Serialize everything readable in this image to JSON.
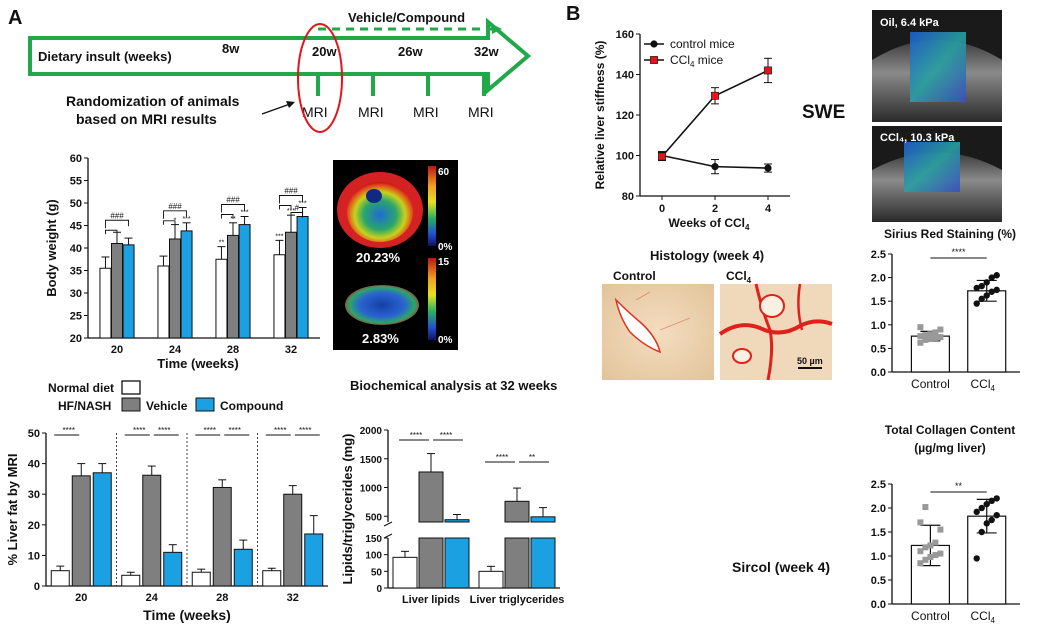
{
  "panels": {
    "A": "A",
    "B": "B"
  },
  "timeline": {
    "label": "Dietary insult (weeks)",
    "weeks": [
      "8w",
      "20w",
      "26w",
      "32w"
    ],
    "treatment_label": "Vehicle/Compound",
    "mri_label": "MRI",
    "randomization_line1": "Randomization of animals",
    "randomization_line2": "based on MRI results",
    "arrow_color": "#21A84A",
    "highlight_color": "#E0161B"
  },
  "legend": {
    "normal_diet": "Normal diet",
    "hf_nash": "HF/NASH",
    "vehicle": "Vehicle",
    "compound": "Compound",
    "colors": {
      "normal": "#FFFFFF",
      "vehicle": "#7F7F7F",
      "compound": "#1BA1E2"
    }
  },
  "mri_images": {
    "scale_top_max": "60",
    "scale_top_min": "0%",
    "scale_bottom_max": "15",
    "scale_bottom_min": "0%",
    "value_top": "20.23%",
    "value_bottom": "2.83%"
  },
  "body_weight": {
    "chart_data": {
      "type": "bar",
      "title": "",
      "xlabel": "Time (weeks)",
      "ylabel": "Body weight (g)",
      "categories": [
        "20",
        "24",
        "28",
        "32"
      ],
      "ylim": [
        20,
        60
      ],
      "yticks": [
        "20",
        "25",
        "30",
        "35",
        "40",
        "45",
        "50",
        "55",
        "60"
      ],
      "series": [
        {
          "name": "Normal diet",
          "values": [
            35.5,
            36.0,
            37.5,
            38.5
          ],
          "errors": [
            2.5,
            2.2,
            2.8,
            3.2
          ],
          "stars": [
            "",
            "",
            "**",
            "***"
          ]
        },
        {
          "name": "Vehicle",
          "values": [
            41.0,
            42.0,
            42.8,
            43.5
          ],
          "errors": [
            2.5,
            3.2,
            2.8,
            3.8
          ],
          "stars": [
            "",
            "*",
            "**",
            "***"
          ]
        },
        {
          "name": "Compound",
          "values": [
            40.7,
            43.8,
            45.2,
            47.0
          ],
          "errors": [
            1.5,
            1.8,
            1.8,
            2.0
          ],
          "stars": [
            "",
            "***",
            "***",
            "***"
          ]
        }
      ],
      "sig_labels": [
        "###",
        "###",
        "###",
        "###",
        "#"
      ]
    }
  },
  "liver_fat": {
    "chart_data": {
      "type": "bar",
      "xlabel": "Time (weeks)",
      "ylabel": "% Liver fat by MRI",
      "categories": [
        "20",
        "24",
        "28",
        "32"
      ],
      "ylim": [
        0,
        50
      ],
      "yticks": [
        "0",
        "10",
        "20",
        "30",
        "40",
        "50"
      ],
      "series": [
        {
          "name": "Normal diet",
          "values": [
            5,
            3.5,
            4.5,
            5
          ],
          "errors": [
            1.5,
            1.0,
            1.0,
            0.8
          ]
        },
        {
          "name": "Vehicle",
          "values": [
            36,
            36.2,
            32.2,
            30
          ],
          "errors": [
            4,
            3,
            2.5,
            2.8
          ]
        },
        {
          "name": "Compound",
          "values": [
            37,
            11,
            12,
            17
          ],
          "errors": [
            3,
            2.5,
            3,
            6
          ]
        }
      ],
      "sig_label": "****"
    }
  },
  "biochem": {
    "title": "Biochemical analysis at 32 weeks",
    "chart_data": {
      "type": "bar",
      "ylabel": "Lipids/triglycerides (mg)",
      "categories": [
        "Liver lipids",
        "Liver triglycerides"
      ],
      "axis_break": [
        150,
        400
      ],
      "yticks_top": [
        "500",
        "1000",
        "1500",
        "2000"
      ],
      "yticks_bottom": [
        "0",
        "50",
        "100",
        "150"
      ],
      "series": [
        {
          "name": "Normal diet",
          "values": [
            92,
            50
          ],
          "errors": [
            18,
            15
          ]
        },
        {
          "name": "Vehicle",
          "values": [
            1270,
            760
          ],
          "errors": [
            320,
            230
          ]
        },
        {
          "name": "Compound",
          "values": [
            440,
            490
          ],
          "errors": [
            90,
            160
          ]
        }
      ],
      "sig_labels": [
        "****",
        "****",
        "****",
        "**"
      ]
    }
  },
  "stiffness": {
    "chart_data": {
      "type": "line",
      "xlabel": "Weeks of CCl4",
      "ylabel": "Relative liver stiffness (%)",
      "x": [
        0,
        2,
        4
      ],
      "xticks": [
        "0",
        "2",
        "4"
      ],
      "ylim": [
        80,
        160
      ],
      "yticks": [
        "80",
        "100",
        "120",
        "140",
        "160"
      ],
      "series": [
        {
          "name": "control mice",
          "values": [
            100,
            94.5,
            93.8
          ],
          "errors": [
            2,
            3.5,
            2
          ],
          "color": "#111111"
        },
        {
          "name": "CCl4 mice",
          "values": [
            99.5,
            129.5,
            142
          ],
          "errors": [
            2,
            4,
            6
          ],
          "color": "#E0161B"
        }
      ]
    },
    "legend_control": "control mice",
    "legend_ccl4": "CCl",
    "legend_ccl4_sub": "4",
    "legend_ccl4_suffix": " mice",
    "xlabel_main": "Weeks of CCl",
    "xlabel_sub": "4"
  },
  "swe": {
    "label": "SWE",
    "image_top_caption": "Oil, 6.4 kPa",
    "image_bottom_caption": "CCl₄, 10.3 kPa"
  },
  "histology": {
    "title": "Histology (week 4)",
    "control_label": "Control",
    "ccl4_label": "CCl",
    "ccl4_sub": "4",
    "scale_bar": "50 µm"
  },
  "sirius": {
    "chart_data": {
      "type": "bar",
      "title": "Sirius Red Staining (%)",
      "categories": [
        "Control",
        "CCl4"
      ],
      "ylim": [
        0,
        2.5
      ],
      "yticks": [
        "0.0",
        "0.5",
        "1.0",
        "1.5",
        "2.0",
        "2.5"
      ],
      "values": [
        0.76,
        1.72
      ],
      "errors": [
        0.1,
        0.22
      ],
      "points": [
        [
          0.62,
          0.68,
          0.7,
          0.72,
          0.74,
          0.76,
          0.78,
          0.8,
          0.84,
          0.9,
          0.95
        ],
        [
          1.45,
          1.55,
          1.62,
          1.7,
          1.74,
          1.78,
          1.82,
          1.9,
          2.0,
          2.05
        ]
      ],
      "sig_label": "****"
    },
    "cat_control": "Control",
    "cat_ccl4": "CCl",
    "cat_ccl4_sub": "4"
  },
  "collagen": {
    "chart_data": {
      "type": "bar",
      "title": "Total Collagen Content",
      "subtitle": "(µg/mg liver)",
      "categories": [
        "Control",
        "CCl4"
      ],
      "ylim": [
        0,
        2.5
      ],
      "yticks": [
        "0.0",
        "0.5",
        "1.0",
        "1.5",
        "2.0",
        "2.5"
      ],
      "values": [
        1.22,
        1.83
      ],
      "errors": [
        0.42,
        0.35
      ],
      "points": [
        [
          0.85,
          0.92,
          0.98,
          1.02,
          1.05,
          1.1,
          1.18,
          1.22,
          1.28,
          1.55,
          1.7,
          2.02
        ],
        [
          0.95,
          1.5,
          1.68,
          1.75,
          1.85,
          1.92,
          2.0,
          2.08,
          2.15,
          2.2
        ]
      ],
      "sig_label": "**"
    },
    "cat_control": "Control",
    "cat_ccl4": "CCl",
    "cat_ccl4_sub": "4",
    "side_label": "Sircol (week 4)"
  }
}
